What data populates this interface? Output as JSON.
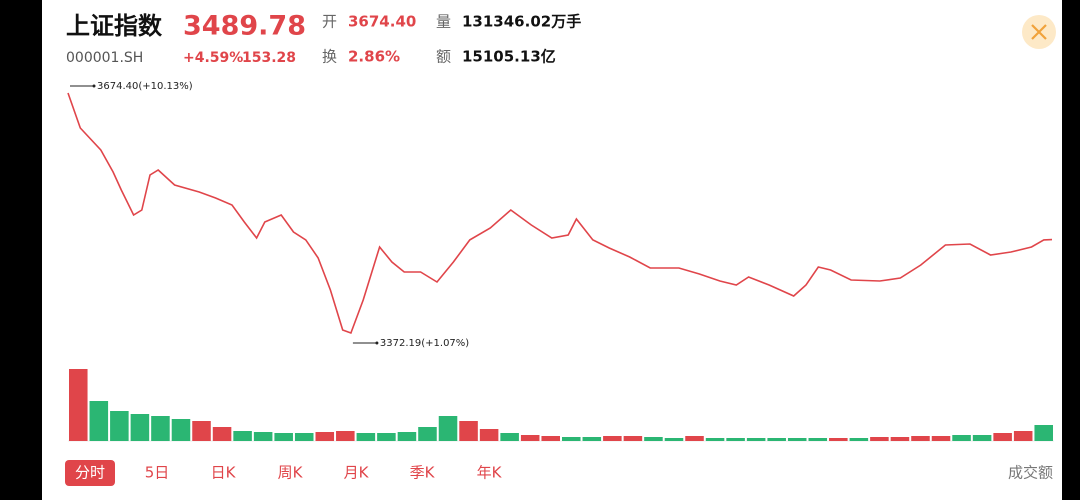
{
  "header": {
    "title": "上证指数",
    "code": "000001.SH",
    "price": "3489.78",
    "change_pct": "+4.59%",
    "change": "153.28",
    "stats": [
      {
        "label": "开",
        "value": "3674.40"
      },
      {
        "label": "换",
        "value": "2.86%"
      },
      {
        "label": "量",
        "value": "131346.02万手"
      },
      {
        "label": "额",
        "value": "15105.13亿"
      }
    ]
  },
  "tabs": [
    "分时",
    "5日",
    "日K",
    "周K",
    "月K",
    "季K",
    "年K"
  ],
  "volume_label": "成交额",
  "chart_data": {
    "type": "line",
    "color": "#e0454a",
    "xlim": [
      0,
      240
    ],
    "ylim": [
      3372.19,
      3674.4
    ],
    "x": [
      0,
      3,
      8,
      11,
      13,
      16,
      18,
      20,
      22,
      26,
      32,
      36,
      40,
      43,
      46,
      48,
      52,
      55,
      58,
      61,
      64,
      67,
      69,
      72,
      76,
      79,
      82,
      86,
      90,
      94,
      98,
      103,
      108,
      113,
      118,
      122,
      124,
      128,
      132,
      137,
      142,
      149,
      154,
      159,
      163,
      166,
      171,
      177,
      180,
      183,
      186,
      191,
      198,
      203,
      208,
      214,
      220,
      225,
      230,
      235,
      238,
      240
    ],
    "values": [
      3674.4,
      3630.3,
      3602.6,
      3574.9,
      3552.3,
      3520.8,
      3527.1,
      3571.1,
      3577.4,
      3558.6,
      3549.7,
      3542.2,
      3533.4,
      3512.0,
      3491.8,
      3512.0,
      3520.8,
      3499.4,
      3489.4,
      3466.7,
      3426.3,
      3376.0,
      3372.19,
      3413.7,
      3480.5,
      3461.6,
      3449.0,
      3449.0,
      3436.4,
      3461.6,
      3489.4,
      3504.4,
      3527.1,
      3508.2,
      3491.8,
      3495.6,
      3515.7,
      3489.4,
      3479.2,
      3467.9,
      3454.0,
      3454.0,
      3446.5,
      3437.7,
      3432.6,
      3442.7,
      3432.6,
      3418.8,
      3432.6,
      3455.3,
      3451.5,
      3438.9,
      3437.7,
      3441.4,
      3457.8,
      3483.0,
      3484.3,
      3470.4,
      3474.2,
      3480.5,
      3489.4,
      3489.78
    ],
    "annotations": [
      {
        "text": "3674.40(+10.13%)",
        "x": 0,
        "y": 3674.4
      },
      {
        "text": "3372.19(+1.07%)",
        "x": 69,
        "y": 3372.19
      }
    ],
    "volume": {
      "ylim": [
        0,
        75
      ],
      "values": [
        72,
        40,
        30,
        27,
        25,
        22,
        20,
        14,
        10,
        9,
        8,
        8,
        9,
        10,
        8,
        8,
        9,
        14,
        25,
        20,
        12,
        8,
        6,
        5,
        4,
        4,
        5,
        5,
        4,
        3,
        5,
        3,
        3,
        3,
        3,
        3,
        3,
        3,
        3,
        4,
        4,
        5,
        5,
        6,
        6,
        8,
        10,
        16
      ],
      "colors": [
        "#e0454a",
        "#2bb673",
        "#2bb673",
        "#2bb673",
        "#2bb673",
        "#2bb673",
        "#e0454a",
        "#e0454a",
        "#2bb673",
        "#2bb673",
        "#2bb673",
        "#2bb673",
        "#e0454a",
        "#e0454a",
        "#2bb673",
        "#2bb673",
        "#2bb673",
        "#2bb673",
        "#2bb673",
        "#e0454a",
        "#e0454a",
        "#2bb673",
        "#e0454a",
        "#e0454a",
        "#2bb673",
        "#2bb673",
        "#e0454a",
        "#e0454a",
        "#2bb673",
        "#2bb673",
        "#e0454a",
        "#2bb673",
        "#2bb673",
        "#2bb673",
        "#2bb673",
        "#2bb673",
        "#2bb673",
        "#e0454a",
        "#2bb673",
        "#e0454a",
        "#e0454a",
        "#e0454a",
        "#e0454a",
        "#2bb673",
        "#2bb673",
        "#e0454a",
        "#e0454a",
        "#2bb673"
      ]
    }
  }
}
